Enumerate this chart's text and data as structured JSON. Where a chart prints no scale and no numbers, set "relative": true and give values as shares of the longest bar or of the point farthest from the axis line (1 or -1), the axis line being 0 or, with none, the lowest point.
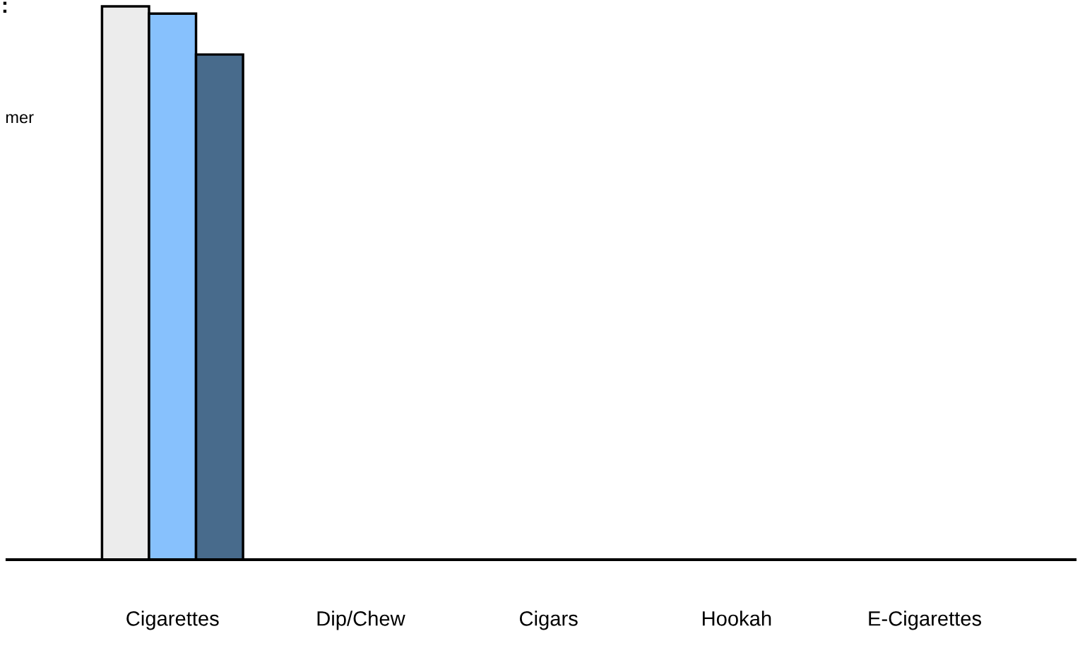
{
  "chart_data": {
    "type": "bar",
    "relative": true,
    "categories": [
      "Cigarettes",
      "Dip/Chew",
      "Cigars",
      "Hookah",
      "E-Cigarettes"
    ],
    "series": [
      {
        "color": "#ececec",
        "values": [
          1,
          null,
          null,
          null,
          null
        ]
      },
      {
        "color": "#87c1fd",
        "values": [
          0.987,
          null,
          null,
          null,
          null
        ]
      },
      {
        "color": "#486b8c",
        "values": [
          0.913,
          null,
          null,
          null,
          null
        ]
      }
    ],
    "annotations": [
      ":",
      "mer"
    ],
    "grid": false,
    "legend": false
  }
}
